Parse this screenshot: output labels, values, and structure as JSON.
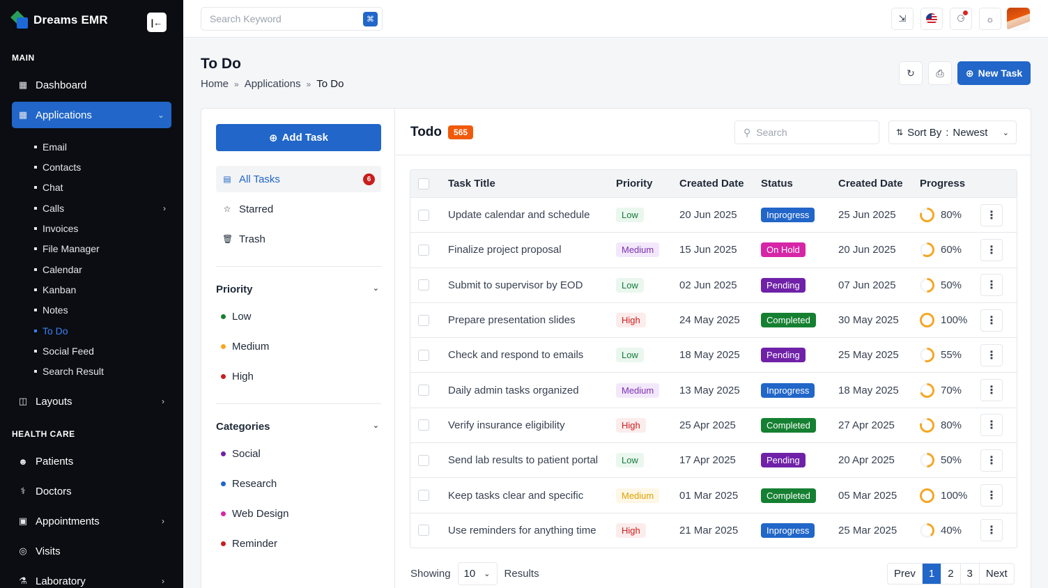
{
  "brand": {
    "name": "Dreams EMR"
  },
  "sidebar": {
    "main_title": "MAIN",
    "health_title": "HEALTH CARE",
    "dashboard": "Dashboard",
    "applications": "Applications",
    "sub_items": [
      "Email",
      "Contacts",
      "Chat",
      "Calls",
      "Invoices",
      "File Manager",
      "Calendar",
      "Kanban",
      "Notes",
      "To Do",
      "Social Feed",
      "Search Result"
    ],
    "layouts": "Layouts",
    "health_items": [
      "Patients",
      "Doctors",
      "Appointments",
      "Visits",
      "Laboratory"
    ]
  },
  "topbar": {
    "search_placeholder": "Search Keyword"
  },
  "page": {
    "title": "To Do",
    "breadcrumb": [
      "Home",
      "Applications",
      "To Do"
    ],
    "new_task": "New Task"
  },
  "left": {
    "add_task": "Add Task",
    "all_tasks": "All Tasks",
    "all_tasks_count": "6",
    "starred": "Starred",
    "trash": "Trash",
    "priority_title": "Priority",
    "priorities": [
      {
        "label": "Low",
        "color": "#158031"
      },
      {
        "label": "Medium",
        "color": "#f5a623"
      },
      {
        "label": "High",
        "color": "#c81e1e"
      }
    ],
    "categories_title": "Categories",
    "categories": [
      {
        "label": "Social",
        "color": "#6f21a8"
      },
      {
        "label": "Research",
        "color": "#2166c8"
      },
      {
        "label": "Web Design",
        "color": "#d626a7"
      },
      {
        "label": "Reminder",
        "color": "#c81e1e"
      }
    ]
  },
  "todo": {
    "title": "Todo",
    "count": "565",
    "search_placeholder": "Search",
    "sort_label": "Sort By",
    "sort_sep": ":",
    "sort_value": "Newest"
  },
  "table": {
    "headers": [
      "Task Title",
      "Priority",
      "Created Date",
      "Status",
      "Created Date",
      "Progress"
    ],
    "rows": [
      {
        "title": "Update calendar and schedule",
        "priority": "Low",
        "pclass": "low",
        "created": "20 Jun 2025",
        "status": "Inprogress",
        "sclass": "inprogress",
        "due": "25 Jun 2025",
        "progress": "80%",
        "pct": 80
      },
      {
        "title": "Finalize project proposal",
        "priority": "Medium",
        "pclass": "medium",
        "created": "15 Jun 2025",
        "status": "On Hold",
        "sclass": "onhold",
        "due": "20 Jun 2025",
        "progress": "60%",
        "pct": 60
      },
      {
        "title": "Submit to supervisor by EOD",
        "priority": "Low",
        "pclass": "low",
        "created": "02 Jun 2025",
        "status": "Pending",
        "sclass": "pending",
        "due": "07 Jun 2025",
        "progress": "50%",
        "pct": 50
      },
      {
        "title": "Prepare presentation slides",
        "priority": "High",
        "pclass": "high",
        "created": "24 May 2025",
        "status": "Completed",
        "sclass": "completed",
        "due": "30 May 2025",
        "progress": "100%",
        "pct": 100
      },
      {
        "title": "Check and respond to emails",
        "priority": "Low",
        "pclass": "low",
        "created": "18 May 2025",
        "status": "Pending",
        "sclass": "pending",
        "due": "25 May 2025",
        "progress": "55%",
        "pct": 55
      },
      {
        "title": "Daily admin tasks organized",
        "priority": "Medium",
        "pclass": "medium",
        "created": "13 May 2025",
        "status": "Inprogress",
        "sclass": "inprogress",
        "due": "18 May 2025",
        "progress": "70%",
        "pct": 70
      },
      {
        "title": "Verify insurance eligibility",
        "priority": "High",
        "pclass": "high",
        "created": "25 Apr 2025",
        "status": "Completed",
        "sclass": "completed",
        "due": "27 Apr 2025",
        "progress": "80%",
        "pct": 80
      },
      {
        "title": "Send lab results to patient portal",
        "priority": "Low",
        "pclass": "low",
        "created": "17 Apr 2025",
        "status": "Pending",
        "sclass": "pending",
        "due": "20 Apr 2025",
        "progress": "50%",
        "pct": 50
      },
      {
        "title": "Keep tasks clear and specific",
        "priority": "Medium",
        "pclass": "medium-y",
        "created": "01 Mar 2025",
        "status": "Completed",
        "sclass": "completed",
        "due": "05 Mar 2025",
        "progress": "100%",
        "pct": 100
      },
      {
        "title": "Use reminders for anything time",
        "priority": "High",
        "pclass": "high",
        "created": "21 Mar 2025",
        "status": "Inprogress",
        "sclass": "inprogress",
        "due": "25 Mar 2025",
        "progress": "40%",
        "pct": 40
      }
    ]
  },
  "footer": {
    "showing": "Showing",
    "page_size": "10",
    "results": "Results",
    "prev": "Prev",
    "pages": [
      "1",
      "2",
      "3"
    ],
    "next": "Next"
  },
  "colors": {
    "accent": "#2166c8",
    "progress": "#f5a623"
  }
}
